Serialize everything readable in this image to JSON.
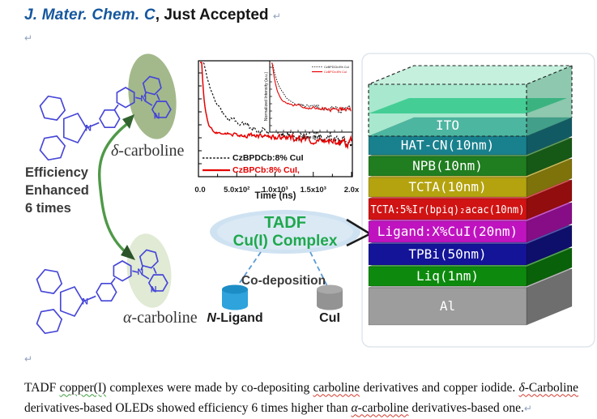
{
  "header": {
    "journal": "J. Mater. Chem. C",
    "suffix": ", Just Accepted",
    "pilcrow": "↵"
  },
  "figure": {
    "left": {
      "efficiency_lines": [
        "Efficiency",
        "Enhanced",
        "6 times"
      ],
      "delta_label": {
        "greek": "δ",
        "rest": "-carboline"
      },
      "alpha_label": {
        "greek": "α",
        "rest": "-carboline"
      },
      "n_atom": "N",
      "structure_color": "#4545d8",
      "delta_ellipse_color": "#a3b98b",
      "alpha_ellipse_color": "#e0ead4",
      "arrow_color": "#4f9948"
    },
    "plot": {
      "xlabel": "Time (ns)",
      "xticks": [
        "0.0",
        "5.0x10²",
        "1.0x10³",
        "1.5x10³",
        "2.0x"
      ],
      "legend": [
        {
          "label": "CzBPDCb:8% CuI",
          "color": "#111111",
          "dashed": true
        },
        {
          "label": "CzBPCb:8% CuI,",
          "color": "#e60000",
          "dashed": false
        }
      ],
      "inset": {
        "ylabel": "Normalized Intensity (a.u.)",
        "xlabel": "Time (ns)",
        "legend": [
          "CzBPDCb:8% CuI",
          "CzBPCb:8% CuI"
        ]
      }
    },
    "chart_data": {
      "type": "line",
      "title": "",
      "xlabel": "Time (ns)",
      "xlim": [
        0,
        2000
      ],
      "xtick_labels": [
        "0.0",
        "5.0x10²",
        "1.0x10³",
        "1.5x10³",
        "2.0x"
      ],
      "yscale": "log (axis unlabeled in figure)",
      "legend_position": "lower-left",
      "series": [
        {
          "name": "CzBPDCb:8% CuI",
          "style": "dashed",
          "color": "#111111",
          "description": "photoluminescence decay, broad shoulder then noisy tail"
        },
        {
          "name": "CzBPCb:8% CuI",
          "style": "solid",
          "color": "#e60000",
          "description": "photoluminescence decay, sharp spike then long noisy tail"
        }
      ],
      "inset": {
        "ylabel": "Normalized Intensity (a.u.)",
        "xlabel": "Time (ns)",
        "series": [
          "CzBPDCb:8% CuI",
          "CzBPCb:8% CuI"
        ],
        "legend_position": "upper-right"
      }
    },
    "tadf": {
      "line1": "TADF",
      "line2": "Cu(I) Complex",
      "text_color": "#1ea84d",
      "bubble_color": "#cfe2f2"
    },
    "codeposition": {
      "label": "Co-deposition",
      "ligand": {
        "greek": "N",
        "rest": "-Ligand"
      },
      "cui": "CuI",
      "blue_cylinder": "#2ea3dc",
      "blue_cylinder_top": "#1d8dc6",
      "gray_cylinder": "#939393",
      "gray_cylinder_top": "#a9a9a9",
      "dash_color": "#5b9bd5"
    },
    "stack": {
      "text_color": "#ffffff",
      "layers": [
        {
          "label": "ITO",
          "color": "#3fcd92",
          "glass": true
        },
        {
          "label": "HAT-CN(10nm)",
          "color": "#19808d"
        },
        {
          "label": "NPB(10nm)",
          "color": "#207d20"
        },
        {
          "label": "TCTA(10nm)",
          "color": "#b4a30f"
        },
        {
          "label": "TCTA:5%Ir(bpiq)₂acac(10nm)",
          "color": "#d01313"
        },
        {
          "label": "Ligand:X%CuI(20nm)",
          "color": "#c013c0"
        },
        {
          "label": "TPBi(50nm)",
          "color": "#141499"
        },
        {
          "label": "Liq(1nm)",
          "color": "#0d8a0d"
        },
        {
          "label": "Al",
          "color": "#9d9d9d"
        }
      ]
    },
    "pilcrow": "↵"
  },
  "caption": {
    "segments": [
      {
        "t": "TADF "
      },
      {
        "t": "copper(I)",
        "u": "green"
      },
      {
        "t": " complexes were made by co-depositing "
      },
      {
        "t": "carboline",
        "u": "red"
      },
      {
        "t": " derivatives and copper iodide. "
      },
      {
        "t": "δ",
        "i": true,
        "u": "red"
      },
      {
        "t": "-Carboline",
        "u": "red"
      },
      {
        "t": " derivatives-based OLEDs showed efficiency 6 times higher than "
      },
      {
        "t": "α",
        "i": true,
        "u": "red"
      },
      {
        "t": "-carboline",
        "u": "red"
      },
      {
        "t": " derivatives-based one."
      }
    ],
    "lead_pilcrow": "↵",
    "end_pilcrow": "↵"
  }
}
